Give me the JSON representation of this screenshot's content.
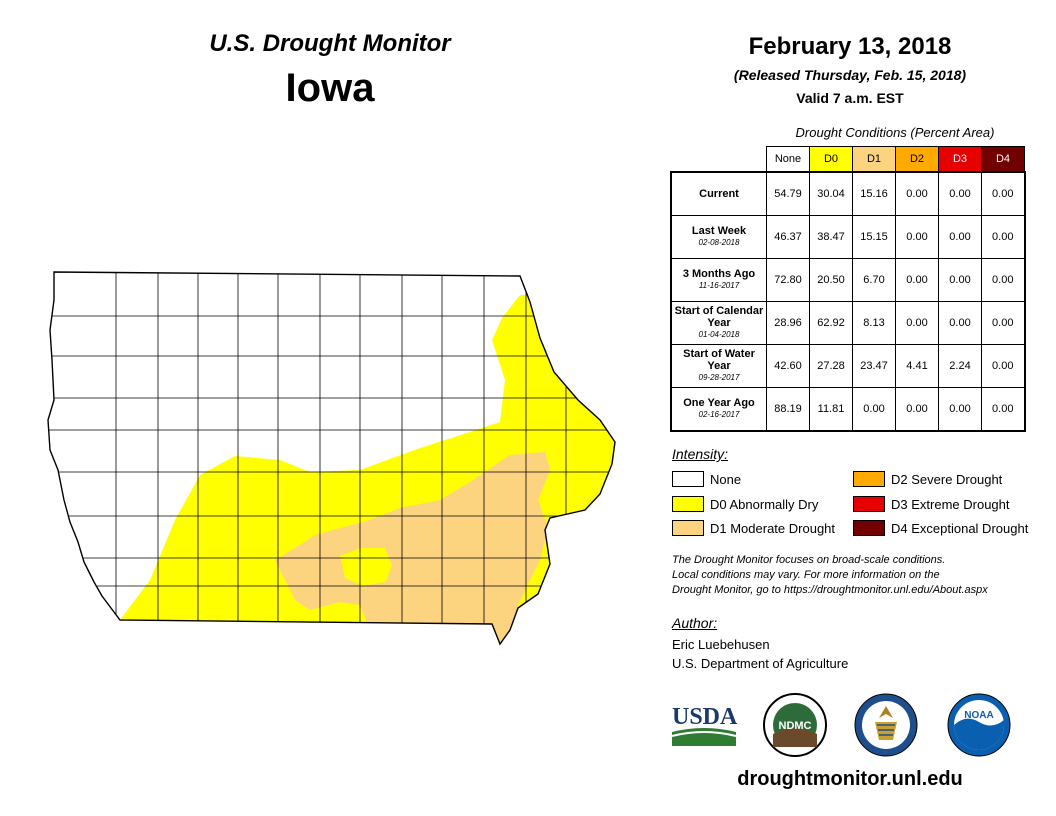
{
  "header": {
    "title": "U.S. Drought Monitor",
    "state": "Iowa",
    "date": "February 13, 2018",
    "released": "(Released Thursday, Feb. 15, 2018)",
    "valid": "Valid 7 a.m. EST"
  },
  "table": {
    "caption": "Drought Conditions (Percent Area)",
    "columns": [
      "None",
      "D0",
      "D1",
      "D2",
      "D3",
      "D4"
    ],
    "rows": [
      {
        "label": "Current",
        "date": "",
        "values": [
          "54.79",
          "30.04",
          "15.16",
          "0.00",
          "0.00",
          "0.00"
        ]
      },
      {
        "label": "Last Week",
        "date": "02-08-2018",
        "values": [
          "46.37",
          "38.47",
          "15.15",
          "0.00",
          "0.00",
          "0.00"
        ]
      },
      {
        "label": "3 Months Ago",
        "date": "11-16-2017",
        "values": [
          "72.80",
          "20.50",
          "6.70",
          "0.00",
          "0.00",
          "0.00"
        ]
      },
      {
        "label": "Start of Calendar Year",
        "date": "01-04-2018",
        "values": [
          "28.96",
          "62.92",
          "8.13",
          "0.00",
          "0.00",
          "0.00"
        ]
      },
      {
        "label": "Start of Water Year",
        "date": "09-28-2017",
        "values": [
          "42.60",
          "27.28",
          "23.47",
          "4.41",
          "2.24",
          "0.00"
        ]
      },
      {
        "label": "One Year Ago",
        "date": "02-16-2017",
        "values": [
          "88.19",
          "11.81",
          "0.00",
          "0.00",
          "0.00",
          "0.00"
        ]
      }
    ]
  },
  "legend": {
    "title": "Intensity:",
    "items": [
      {
        "label": "None",
        "color": "#ffffff"
      },
      {
        "label": "D0 Abnormally Dry",
        "color": "#ffff00"
      },
      {
        "label": "D1 Moderate Drought",
        "color": "#fcd37f"
      },
      {
        "label": "D2 Severe Drought",
        "color": "#ffaa00"
      },
      {
        "label": "D3 Extreme Drought",
        "color": "#e60000"
      },
      {
        "label": "D4 Exceptional Drought",
        "color": "#730000"
      }
    ]
  },
  "note": {
    "line1": "The Drought Monitor focuses on broad-scale conditions.",
    "line2": "Local conditions may vary. For more information on the",
    "line3": "Drought Monitor, go to https://droughtmonitor.unl.edu/About.aspx"
  },
  "author": {
    "title": "Author:",
    "name": "Eric Luebehusen",
    "org": "U.S. Department of Agriculture"
  },
  "logos": {
    "usda": "USDA",
    "ndmc": "NDMC",
    "noaa": "NOAA"
  },
  "url": "droughtmonitor.unl.edu"
}
